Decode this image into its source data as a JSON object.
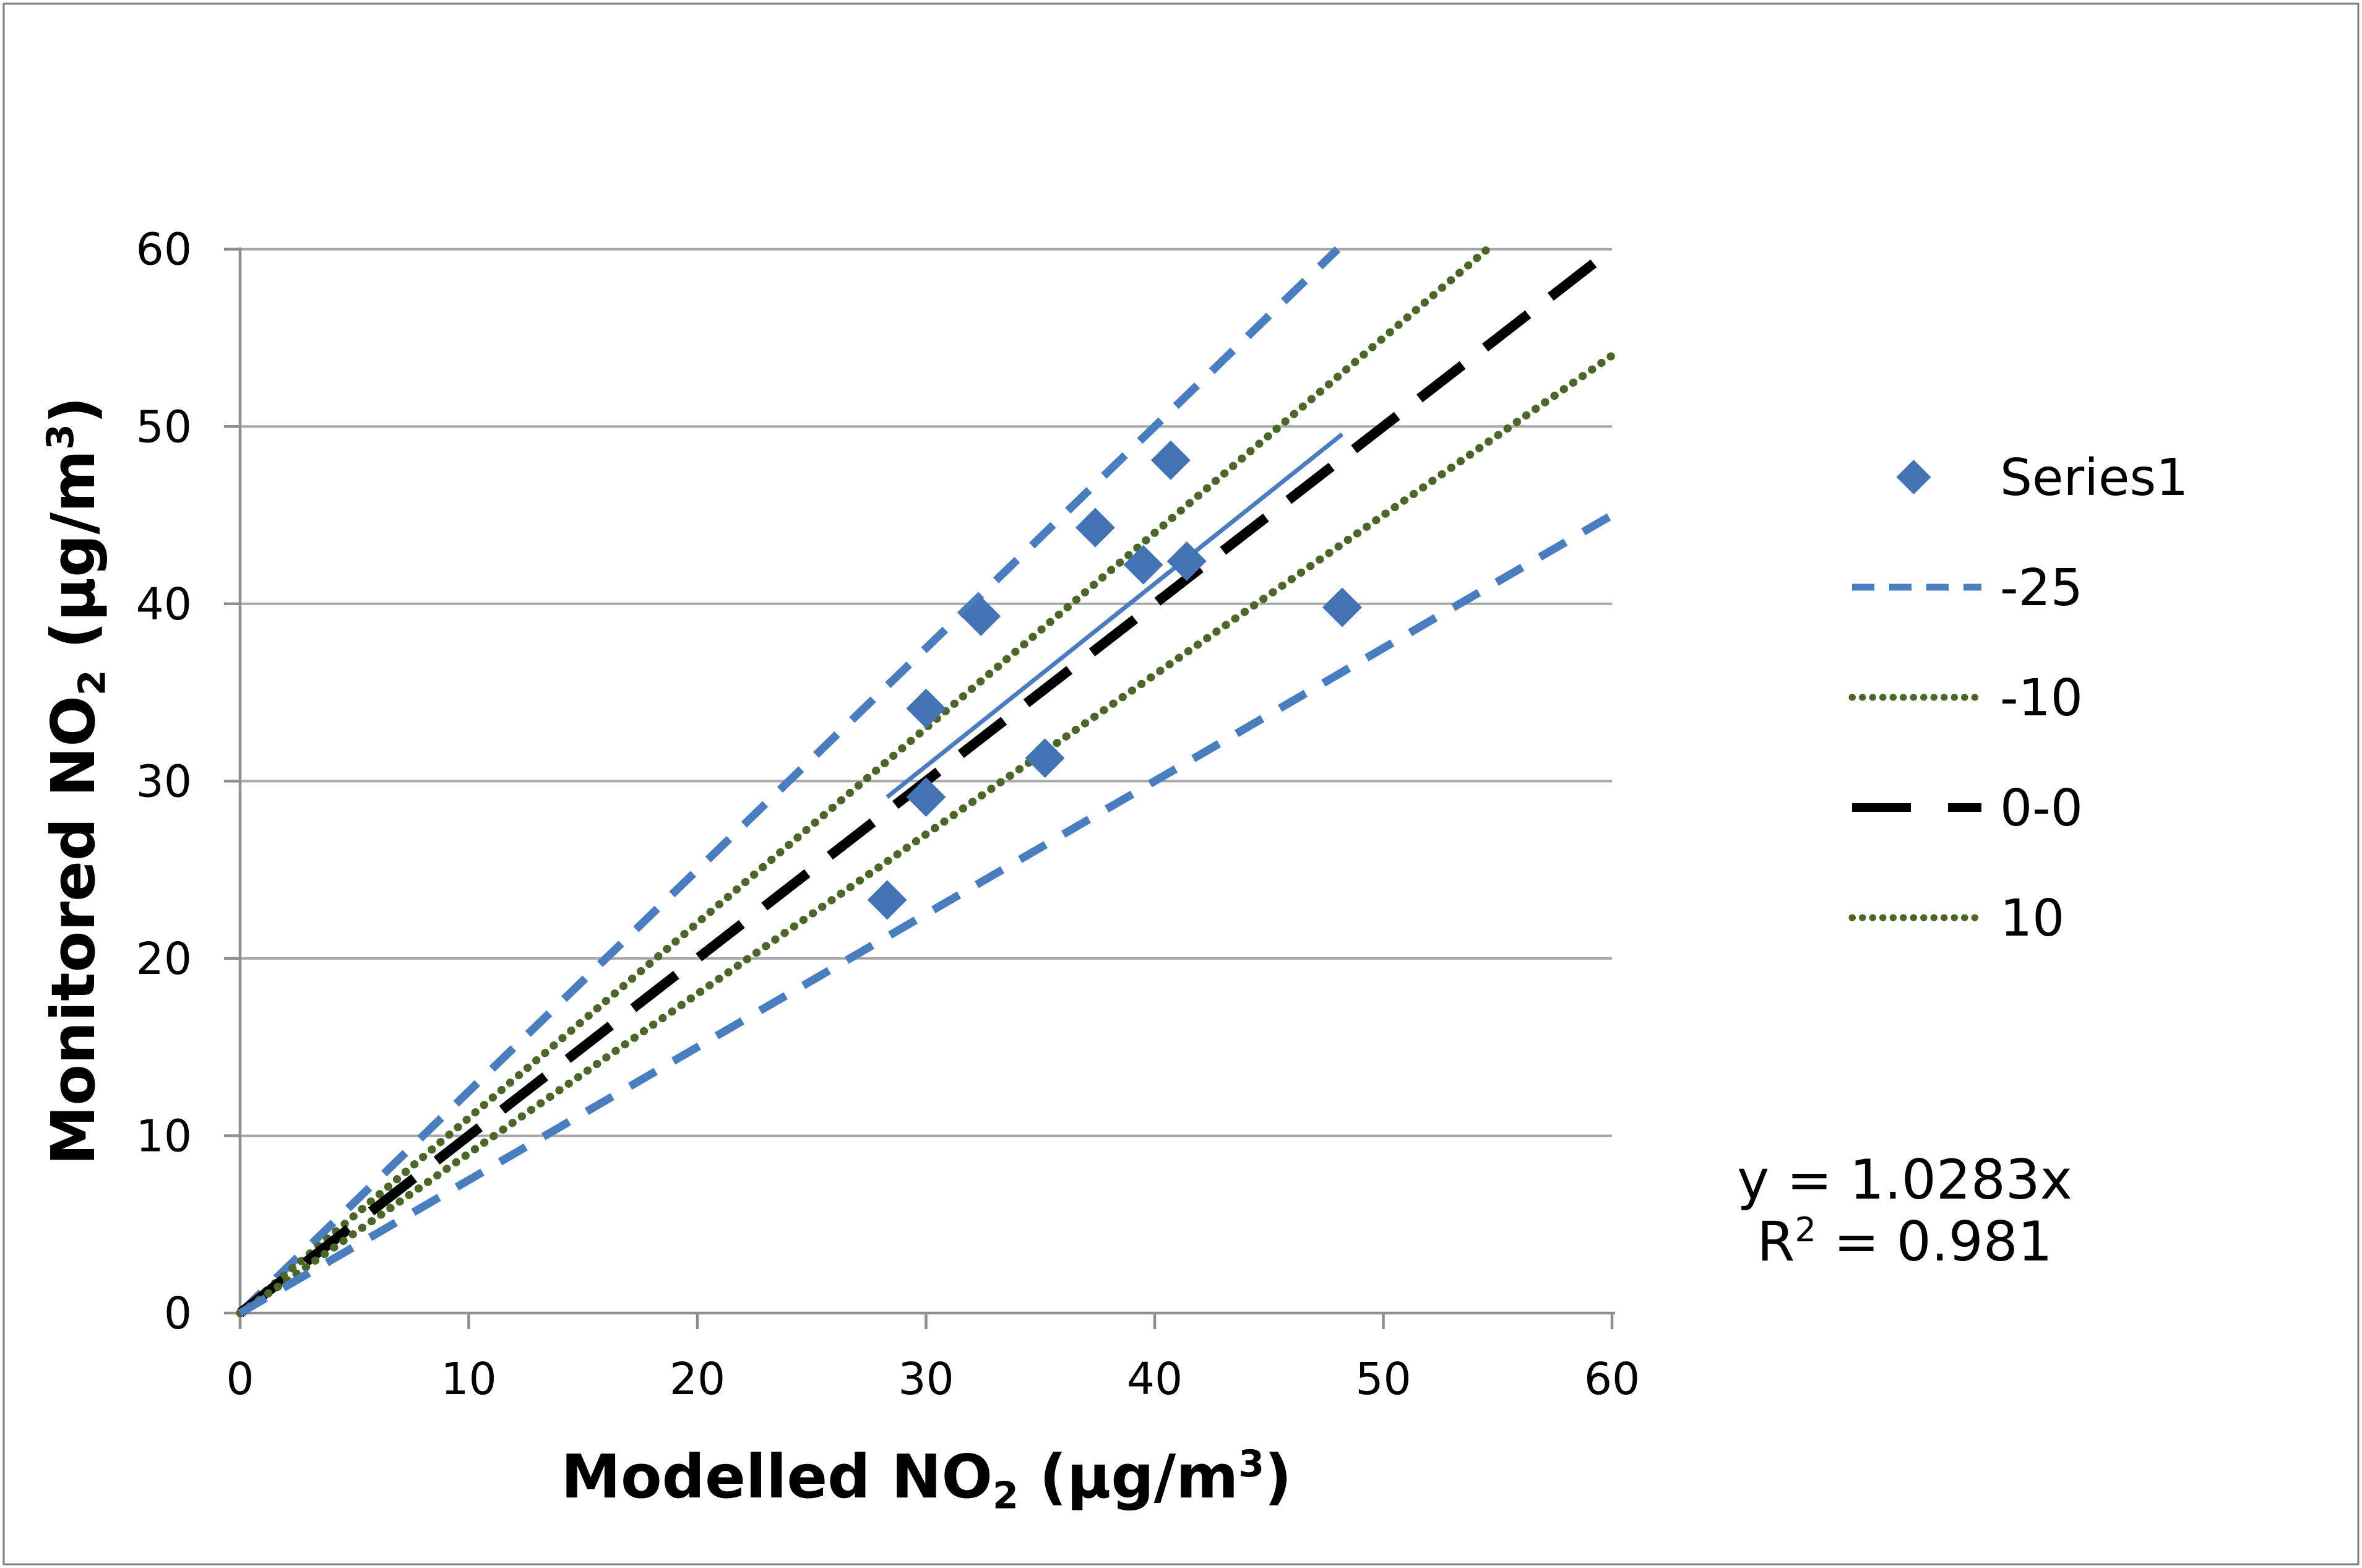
{
  "chart_data": {
    "type": "scatter",
    "title": "",
    "xlabel": "Modelled NO₂ (µg/m³)",
    "ylabel": "Monitored NO₂ (µg/m³)",
    "xlim": [
      0,
      60
    ],
    "ylim": [
      0,
      60
    ],
    "xticks": [
      0,
      10,
      20,
      30,
      40,
      50,
      60
    ],
    "yticks": [
      0,
      10,
      20,
      30,
      40,
      50,
      60
    ],
    "grid": "horizontal-only",
    "series": [
      {
        "name": "Series1",
        "kind": "scatter",
        "marker": "diamond",
        "color": "#4473b4",
        "points": [
          [
            28.3,
            23.3
          ],
          [
            30.0,
            29.1
          ],
          [
            30.0,
            34.1
          ],
          [
            32.4,
            39.3
          ],
          [
            35.2,
            31.3
          ],
          [
            37.4,
            44.3
          ],
          [
            39.5,
            42.2
          ],
          [
            40.7,
            48.1
          ],
          [
            41.4,
            42.4
          ],
          [
            48.2,
            39.8
          ]
        ]
      },
      {
        "name": "-25",
        "kind": "reference_line",
        "slope": 1.25,
        "dash": "dashed",
        "color": "#4a7dbf",
        "in_legend": true
      },
      {
        "name": "-10",
        "kind": "reference_line",
        "slope": 1.1,
        "dash": "dotted",
        "color": "#4c6528",
        "in_legend": true
      },
      {
        "name": "0-0",
        "kind": "reference_line",
        "slope": 1.0,
        "dash": "long-dash",
        "color": "#000000",
        "in_legend": true
      },
      {
        "name": "10",
        "kind": "reference_line",
        "slope": 0.9,
        "dash": "dotted",
        "color": "#4c6528",
        "in_legend": true
      },
      {
        "name": "25",
        "kind": "reference_line",
        "slope": 0.75,
        "dash": "dashed",
        "color": "#4a7dbf",
        "in_legend": false
      },
      {
        "name": "Linear (Series1)",
        "kind": "trendline",
        "slope": 1.0283,
        "x_range": [
          28.3,
          48.2
        ],
        "dash": "solid",
        "color": "#4a7dbf",
        "in_legend": false
      }
    ],
    "legend": {
      "position": "right",
      "entries": [
        "Series1",
        "-25",
        "-10",
        "0-0",
        "10"
      ]
    },
    "annotations": {
      "trendline_equation": "y = 1.0283x",
      "r_squared": "R² = 0.981"
    }
  },
  "style_colors": {
    "marker": "#4473b4",
    "blue_line": "#4a7dbf",
    "green_line": "#4c6528",
    "one_to_one_line": "#000000",
    "gridline": "#a7a7a7",
    "axis": "#8f8f8f",
    "text": "#000000",
    "border": "#7f7f7f",
    "background": "#ffffff"
  }
}
